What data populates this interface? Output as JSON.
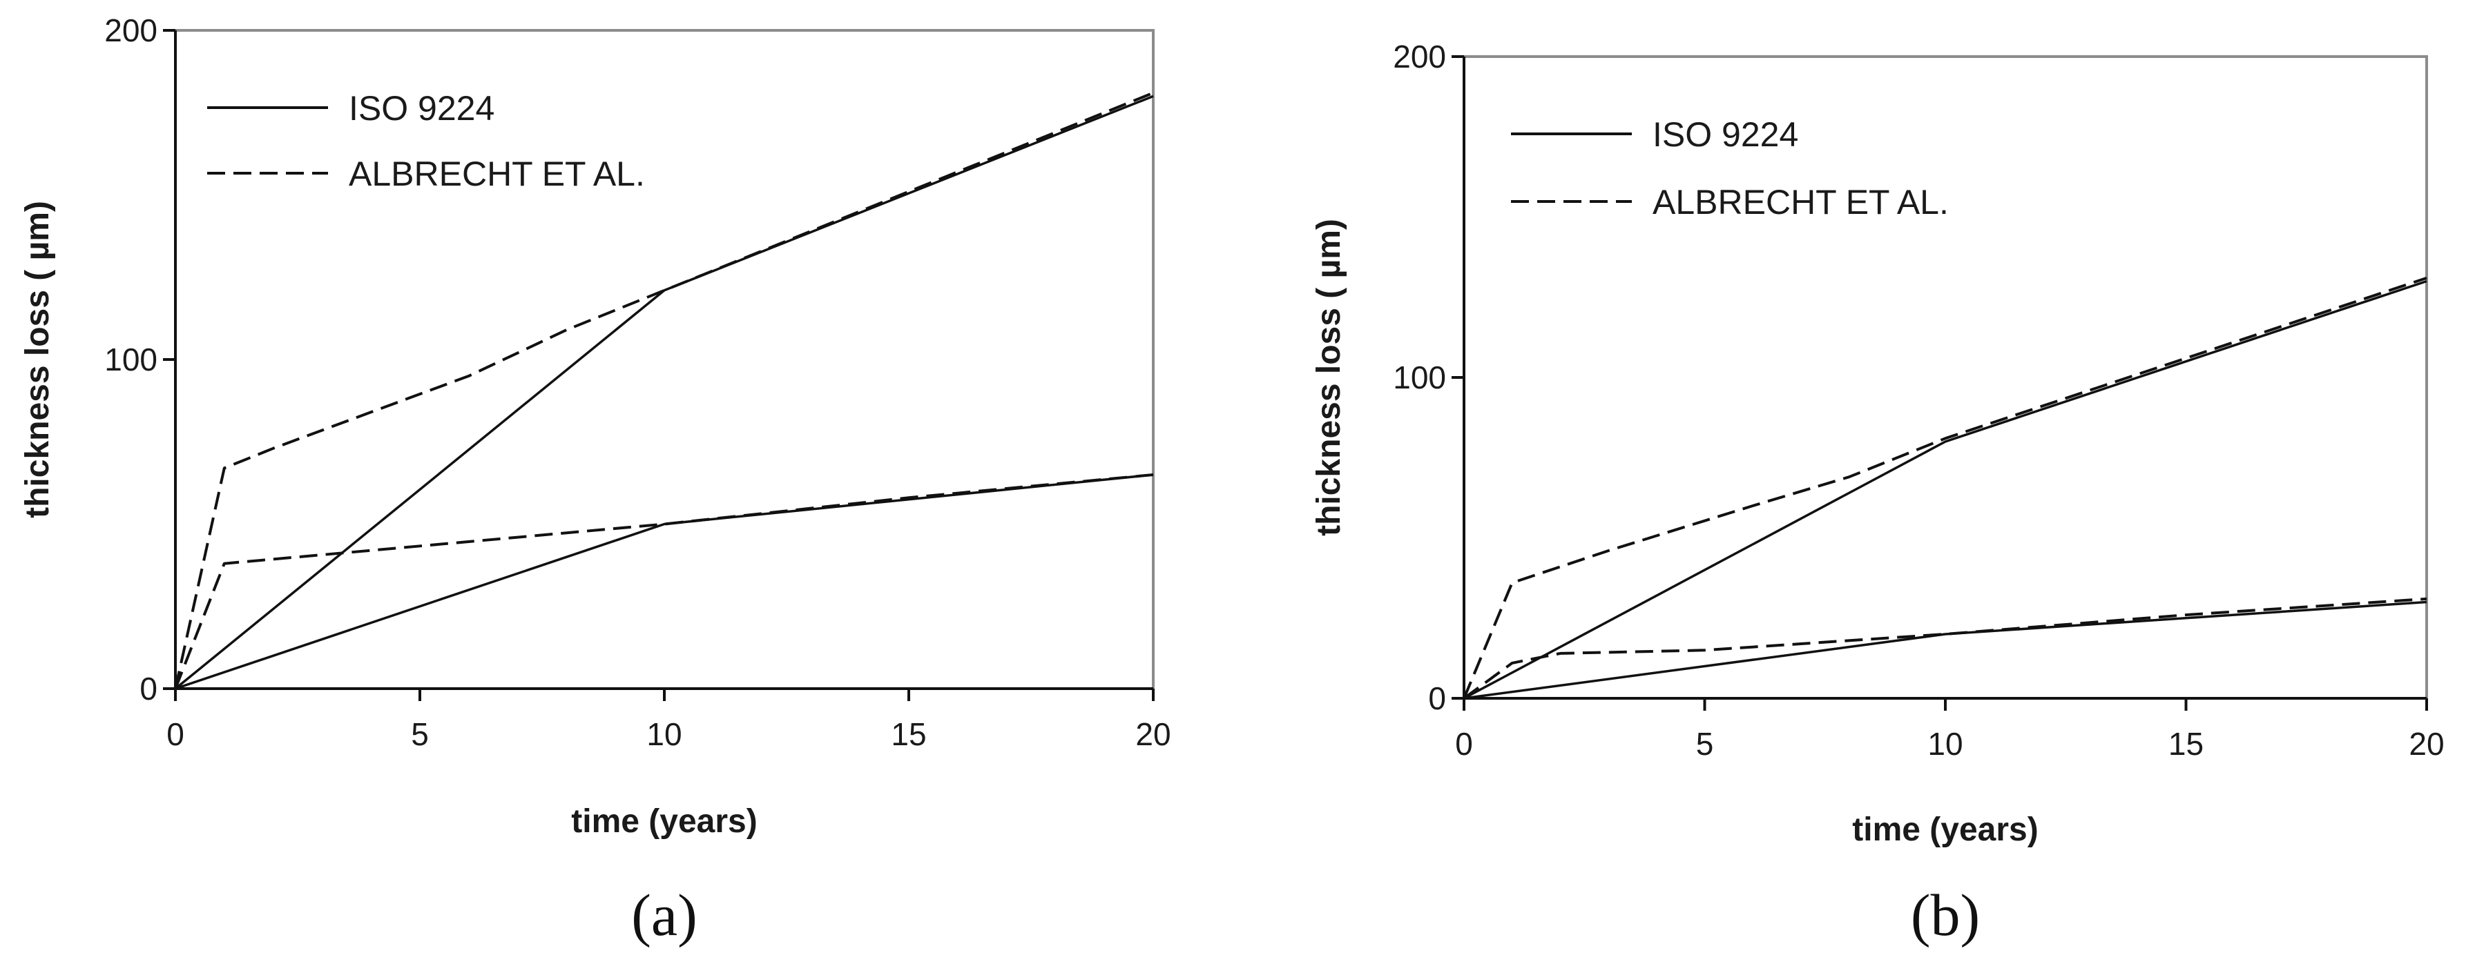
{
  "chart_data": [
    {
      "type": "line",
      "caption": "(a)",
      "xlabel": "time (years)",
      "ylabel": "thickness loss ( µm)",
      "xlim": [
        0,
        20
      ],
      "ylim": [
        0,
        200
      ],
      "x_ticks": [
        "0",
        "5",
        "10",
        "15",
        "20"
      ],
      "y_ticks": [
        "0",
        "100",
        "200"
      ],
      "grid": false,
      "legend": {
        "position": "top-left",
        "entries": [
          {
            "label": "ISO 9224",
            "style": "solid"
          },
          {
            "label": "ALBRECHT ET AL.",
            "style": "dashed"
          }
        ]
      },
      "series": [
        {
          "legend": "ISO 9224",
          "style": "solid",
          "points": [
            [
              0,
              0
            ],
            [
              10,
              121
            ],
            [
              20,
              180
            ]
          ]
        },
        {
          "legend": "ISO 9224",
          "style": "solid",
          "points": [
            [
              0,
              0
            ],
            [
              10,
              50
            ],
            [
              20,
              65
            ]
          ]
        },
        {
          "legend": "ALBRECHT ET AL.",
          "style": "dashed",
          "points": [
            [
              0,
              0
            ],
            [
              1,
              67
            ],
            [
              2,
              73
            ],
            [
              4,
              84
            ],
            [
              6,
              95
            ],
            [
              8,
              109
            ],
            [
              10,
              121
            ],
            [
              15,
              151
            ],
            [
              20,
              181
            ]
          ]
        },
        {
          "legend": "ALBRECHT ET AL.",
          "style": "dashed",
          "points": [
            [
              0,
              0
            ],
            [
              1,
              38
            ],
            [
              4,
              42
            ],
            [
              7,
              46
            ],
            [
              10,
              50
            ],
            [
              15,
              58
            ],
            [
              20,
              65
            ]
          ]
        }
      ]
    },
    {
      "type": "line",
      "caption": "(b)",
      "xlabel": "time (years)",
      "ylabel": "thickness loss ( µm)",
      "xlim": [
        0,
        20
      ],
      "ylim": [
        0,
        200
      ],
      "x_ticks": [
        "0",
        "5",
        "10",
        "15",
        "20"
      ],
      "y_ticks": [
        "0",
        "100",
        "200"
      ],
      "grid": false,
      "legend": {
        "position": "top-left",
        "entries": [
          {
            "label": "ISO 9224",
            "style": "solid"
          },
          {
            "label": "ALBRECHT ET AL.",
            "style": "dashed"
          }
        ]
      },
      "series": [
        {
          "legend": "ISO 9224",
          "style": "solid",
          "points": [
            [
              0,
              0
            ],
            [
              10,
              80
            ],
            [
              20,
              130
            ]
          ]
        },
        {
          "legend": "ISO 9224",
          "style": "solid",
          "points": [
            [
              0,
              0
            ],
            [
              10,
              20
            ],
            [
              20,
              30
            ]
          ]
        },
        {
          "legend": "ALBRECHT ET AL.",
          "style": "dashed",
          "points": [
            [
              0,
              0
            ],
            [
              1,
              36
            ],
            [
              3,
              46
            ],
            [
              6,
              60
            ],
            [
              8,
              69
            ],
            [
              10,
              81
            ],
            [
              15,
              106
            ],
            [
              20,
              131
            ]
          ]
        },
        {
          "legend": "ALBRECHT ET AL.",
          "style": "dashed",
          "points": [
            [
              0,
              0
            ],
            [
              1,
              11
            ],
            [
              2,
              14
            ],
            [
              5,
              15
            ],
            [
              7,
              17
            ],
            [
              10,
              20
            ],
            [
              15,
              26
            ],
            [
              20,
              31
            ]
          ]
        }
      ]
    }
  ]
}
